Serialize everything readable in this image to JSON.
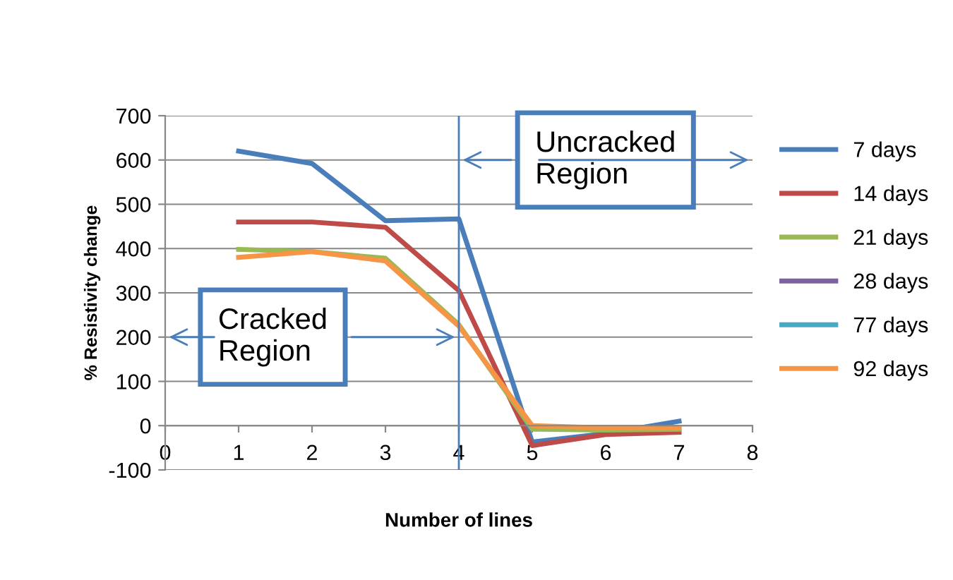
{
  "chart_data": {
    "type": "line",
    "xlabel": "Number of lines",
    "ylabel": "% Resistivity change",
    "x": [
      1,
      2,
      3,
      4,
      5,
      6,
      7
    ],
    "xlim": [
      0,
      8
    ],
    "xticks": [
      0,
      1,
      2,
      3,
      4,
      5,
      6,
      7,
      8
    ],
    "ylim": [
      -100,
      700
    ],
    "yticks": [
      -100,
      0,
      100,
      200,
      300,
      400,
      500,
      600,
      700
    ],
    "grid": "y",
    "legend": "right",
    "marker": "none",
    "line_style": "solid",
    "series": [
      {
        "name": "7 days",
        "color": "#4a7ebb",
        "values": [
          620,
          592,
          463,
          467,
          -37,
          -18,
          10
        ]
      },
      {
        "name": "14 days",
        "color": "#be4b48",
        "values": [
          460,
          460,
          448,
          305,
          -45,
          -20,
          -15
        ]
      },
      {
        "name": "21 days",
        "color": "#98b954",
        "values": [
          398,
          393,
          378,
          228,
          -8,
          -10,
          -8
        ]
      },
      {
        "name": "28 days",
        "color": "#7d60a0",
        "values": [
          null,
          null,
          null,
          null,
          null,
          null,
          null
        ]
      },
      {
        "name": "77 days",
        "color": "#46aac5",
        "values": [
          null,
          null,
          null,
          null,
          null,
          null,
          null
        ]
      },
      {
        "name": "92 days",
        "color": "#f69545",
        "values": [
          380,
          393,
          372,
          225,
          0,
          -5,
          -5
        ]
      }
    ],
    "ref_lines": [
      {
        "axis": "x",
        "value": 4,
        "color": "#4a7ebb"
      }
    ],
    "annotations": [
      {
        "text": "Cracked\nRegion",
        "x": 4,
        "y": 200
      },
      {
        "text": "Uncracked\nRegion",
        "x": 4,
        "y": 600
      }
    ]
  }
}
